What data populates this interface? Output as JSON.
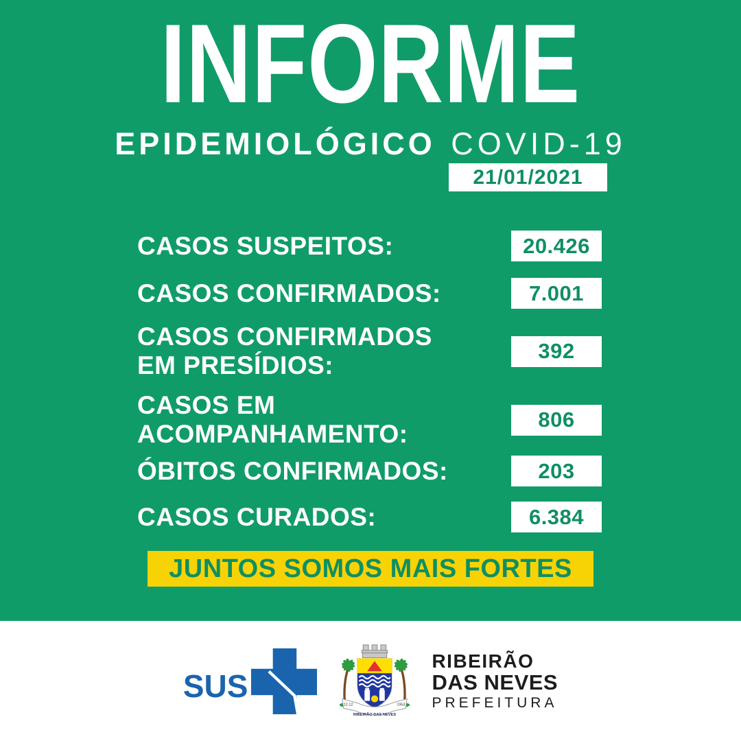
{
  "colors": {
    "green": "#109C68",
    "green_dark": "#0F8F62",
    "yellow": "#F7D306",
    "sus_blue": "#1A64AE",
    "footer_text": "#1D1D1B"
  },
  "header": {
    "title": "INFORME",
    "subtitle_bold": "EPIDEMIOLÓGICO",
    "subtitle_light": "COVID-19",
    "date": "21/01/2021"
  },
  "stats": [
    {
      "label_lines": [
        "CASOS SUSPEITOS:"
      ],
      "value": "20.426"
    },
    {
      "label_lines": [
        "CASOS CONFIRMADOS:"
      ],
      "value": "7.001"
    },
    {
      "label_lines": [
        "CASOS CONFIRMADOS",
        "EM PRESÍDIOS:"
      ],
      "value": "392"
    },
    {
      "label_lines": [
        "CASOS EM",
        "ACOMPANHAMENTO:"
      ],
      "value": "806"
    },
    {
      "label_lines": [
        "ÓBITOS CONFIRMADOS:"
      ],
      "value": "203"
    },
    {
      "label_lines": [
        "CASOS CURADOS:"
      ],
      "value": "6.384"
    }
  ],
  "banner": {
    "text": "JUNTOS SOMOS MAIS FORTES"
  },
  "footer": {
    "sus_label": "SUS",
    "org": {
      "line1": "RIBEIRÃO",
      "line2": "DAS NEVES",
      "line3": "PREFEITURA"
    },
    "crest": {
      "ribbon": "RIBEIRÃO DAS NEVES",
      "left_date": "12-12",
      "right_date": "1953"
    }
  }
}
